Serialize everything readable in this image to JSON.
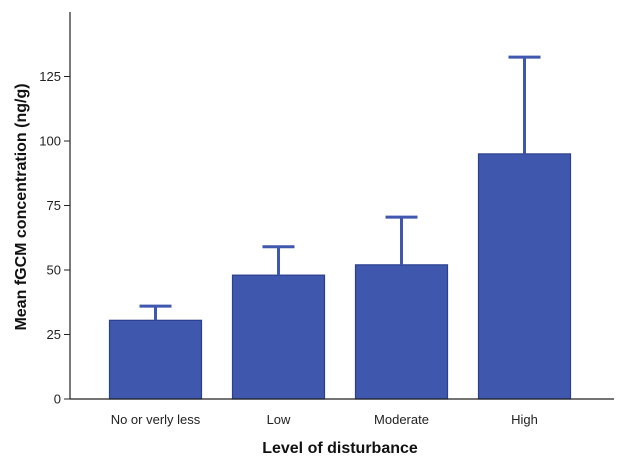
{
  "chart_data": {
    "type": "bar",
    "title": "",
    "xlabel": "Level of disturbance",
    "ylabel": "Mean fGCM concentration (ng/g)",
    "categories": [
      "No or verly less",
      "Low",
      "Moderate",
      "High"
    ],
    "values": [
      30.5,
      48,
      52,
      95
    ],
    "error_upper": [
      36,
      59,
      70.5,
      132.5
    ],
    "ylim": [
      0,
      150
    ],
    "yticks": [
      0,
      25,
      50,
      75,
      100,
      125
    ],
    "ytick_labels": [
      "0",
      "25",
      "50",
      "75",
      "100",
      "125"
    ],
    "grid": false,
    "legend": "none",
    "bar_color": "#3f58ad",
    "bar_edge_color": "#2b3f8f",
    "error_bar_color": "#3f58ad",
    "axis_color": "#222222"
  }
}
